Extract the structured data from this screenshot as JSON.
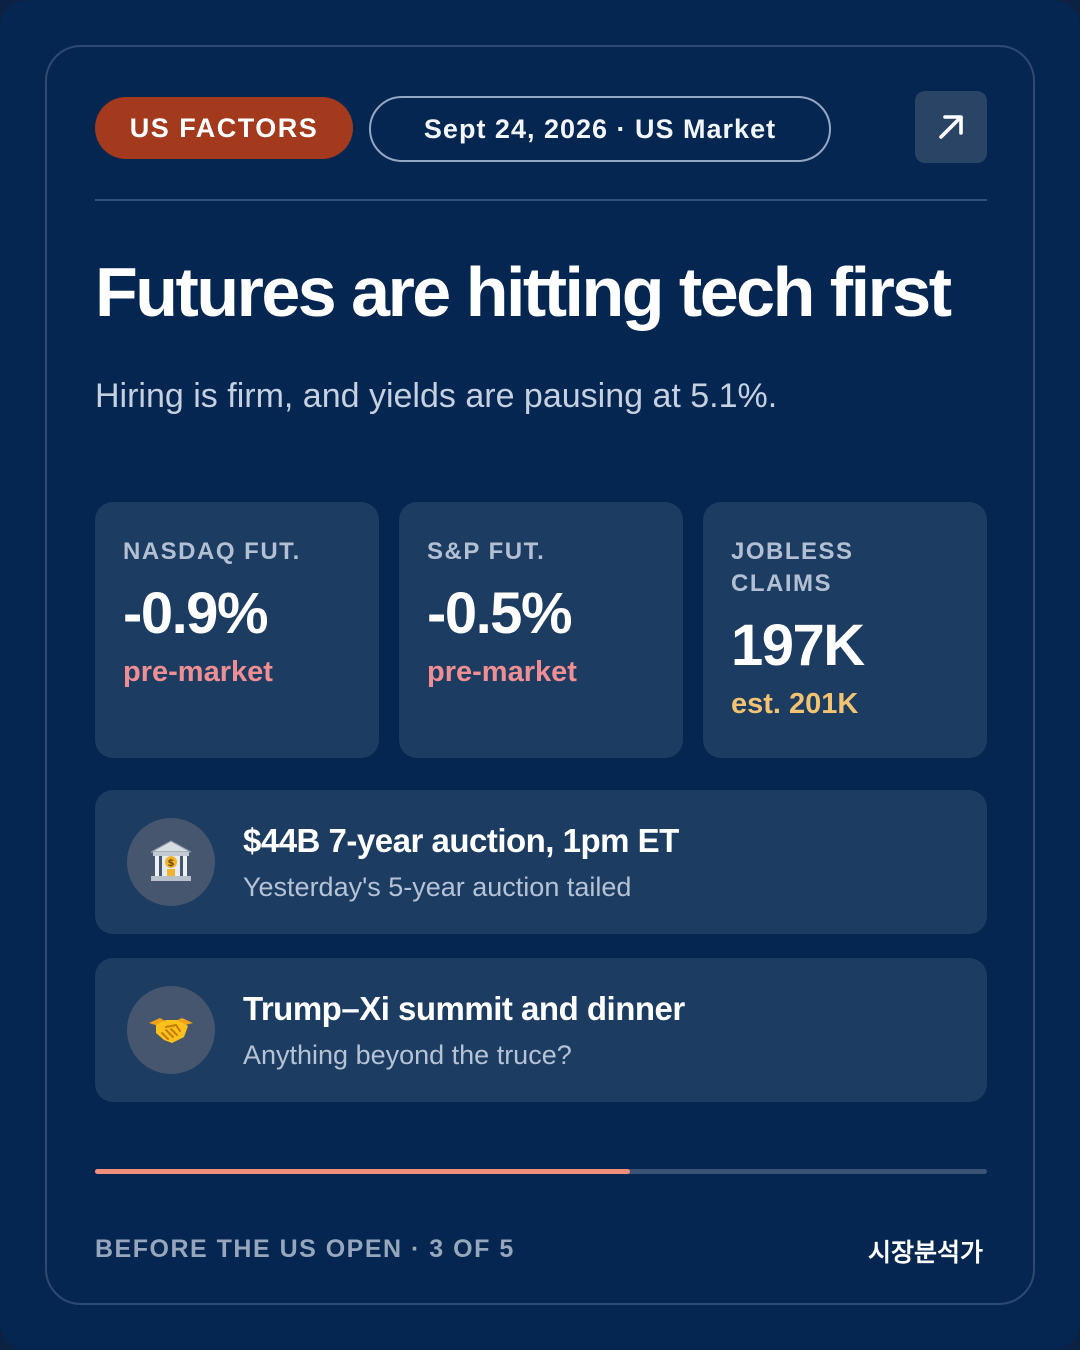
{
  "header": {
    "tag": "US FACTORS",
    "date_pill": "Sept 24, 2026 · US Market",
    "arrow_icon": "arrow-up-right-icon"
  },
  "headline": "Futures are hitting tech first",
  "subhead": "Hiring is firm, and yields are pausing at 5.1%.",
  "stats": [
    {
      "label": "NASDAQ FUT.",
      "value": "-0.9%",
      "note": "pre-market",
      "note_color": "#ef8f93"
    },
    {
      "label": "S&P FUT.",
      "value": "-0.5%",
      "note": "pre-market",
      "note_color": "#ef8f93"
    },
    {
      "label": "JOBLESS CLAIMS",
      "value": "197K",
      "note": "est. 201K",
      "note_color": "#f2c472"
    }
  ],
  "events": [
    {
      "icon": "bank-icon",
      "title": "$44B 7-year auction, 1pm ET",
      "subtitle": "Yesterday's 5-year auction tailed"
    },
    {
      "icon": "handshake-icon",
      "title": "Trump–Xi summit and dinner",
      "subtitle": "Anything beyond the truce?"
    }
  ],
  "progress": {
    "fraction": 0.6
  },
  "footer": {
    "left": "BEFORE THE US OPEN · 3 OF 5",
    "brand": "시장분석가"
  },
  "colors": {
    "background": "#052650",
    "tag": "#a33a1d",
    "panel": "#1c3c62",
    "progress": "#f0907a"
  }
}
